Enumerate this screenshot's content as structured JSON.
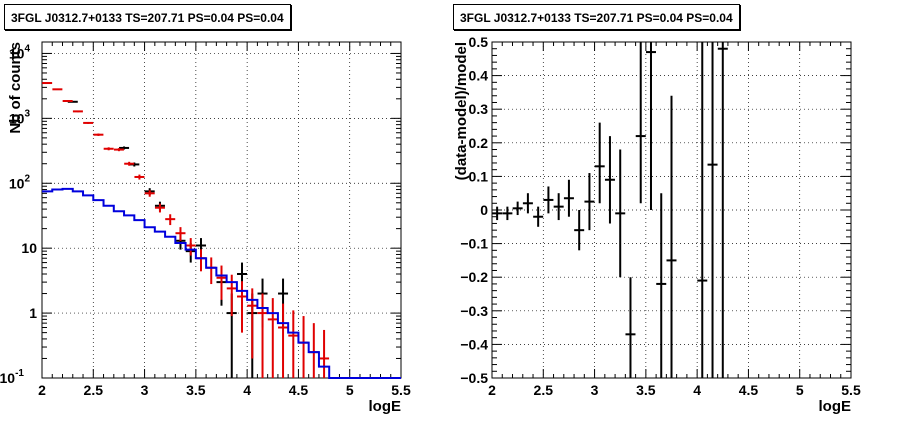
{
  "chart_data": [
    {
      "type": "line",
      "title": "3FGL J0312.7+0133 TS=207.71 PS=0.04 PS=0.04",
      "xlabel": "logE",
      "ylabel": "Nb of counts",
      "xlim": [
        2,
        5.5
      ],
      "ylim": [
        0.1,
        15000
      ],
      "yscale": "log",
      "grid": true,
      "x_ticks": [
        "2",
        "2.5",
        "3",
        "3.5",
        "4",
        "4.5",
        "5",
        "5.5"
      ],
      "y_ticks": [
        "10^-1",
        "1",
        "10",
        "10^2",
        "10^3",
        "10^4"
      ],
      "series": [
        {
          "color": "#000000",
          "style": "points-with-errorbars",
          "points": [
            {
              "x": 2.3,
              "y": 1800,
              "lo": 1760,
              "hi": 1840
            },
            {
              "x": 2.8,
              "y": 350,
              "lo": 331,
              "hi": 369
            },
            {
              "x": 2.9,
              "y": 195,
              "lo": 181,
              "hi": 209
            },
            {
              "x": 3.05,
              "y": 75,
              "lo": 66,
              "hi": 84
            },
            {
              "x": 3.15,
              "y": 45,
              "lo": 38,
              "hi": 52
            },
            {
              "x": 3.35,
              "y": 13,
              "lo": 9.5,
              "hi": 16.5
            },
            {
              "x": 3.45,
              "y": 9,
              "lo": 6,
              "hi": 12
            },
            {
              "x": 3.55,
              "y": 11,
              "lo": 7.7,
              "hi": 14.3
            },
            {
              "x": 3.75,
              "y": 3,
              "lo": 1.3,
              "hi": 4.7
            },
            {
              "x": 3.85,
              "y": 1,
              "lo": 0.1,
              "hi": 2
            },
            {
              "x": 3.95,
              "y": 4,
              "lo": 2,
              "hi": 6
            },
            {
              "x": 4.05,
              "y": 1,
              "lo": 0.1,
              "hi": 2
            },
            {
              "x": 4.15,
              "y": 2,
              "lo": 0.6,
              "hi": 3.4
            },
            {
              "x": 4.35,
              "y": 2,
              "lo": 0.6,
              "hi": 3.4
            }
          ]
        },
        {
          "color": "#e00000",
          "style": "model-with-errorbars",
          "points": [
            {
              "x": 2.05,
              "y": 3500,
              "lo": 3440,
              "hi": 3560
            },
            {
              "x": 2.15,
              "y": 2800,
              "lo": 2747,
              "hi": 2853
            },
            {
              "x": 2.25,
              "y": 1850,
              "lo": 1807,
              "hi": 1893
            },
            {
              "x": 2.35,
              "y": 1280,
              "lo": 1244,
              "hi": 1316
            },
            {
              "x": 2.45,
              "y": 850,
              "lo": 821,
              "hi": 879
            },
            {
              "x": 2.55,
              "y": 560,
              "lo": 536,
              "hi": 584
            },
            {
              "x": 2.65,
              "y": 340,
              "lo": 322,
              "hi": 358
            },
            {
              "x": 2.75,
              "y": 330,
              "lo": 312,
              "hi": 348
            },
            {
              "x": 2.85,
              "y": 200,
              "lo": 186,
              "hi": 214
            },
            {
              "x": 2.95,
              "y": 125,
              "lo": 114,
              "hi": 136
            },
            {
              "x": 3.05,
              "y": 70,
              "lo": 62,
              "hi": 78
            },
            {
              "x": 3.15,
              "y": 42,
              "lo": 35.5,
              "hi": 48.5
            },
            {
              "x": 3.25,
              "y": 28,
              "lo": 22.7,
              "hi": 33.3
            },
            {
              "x": 3.35,
              "y": 17,
              "lo": 12.9,
              "hi": 21.1
            },
            {
              "x": 3.45,
              "y": 11,
              "lo": 7.7,
              "hi": 14.3
            },
            {
              "x": 3.55,
              "y": 7,
              "lo": 4.4,
              "hi": 9.6
            },
            {
              "x": 3.65,
              "y": 5,
              "lo": 2.8,
              "hi": 7.2
            },
            {
              "x": 3.75,
              "y": 3.5,
              "lo": 1.6,
              "hi": 5.4
            },
            {
              "x": 3.85,
              "y": 2.4,
              "lo": 0.9,
              "hi": 3.9
            },
            {
              "x": 3.95,
              "y": 1.8,
              "lo": 0.5,
              "hi": 3.1
            },
            {
              "x": 4.05,
              "y": 1.3,
              "lo": 0.2,
              "hi": 2.4
            },
            {
              "x": 4.15,
              "y": 1.0,
              "lo": 0.1,
              "hi": 2.0
            },
            {
              "x": 4.25,
              "y": 0.8,
              "lo": 0.1,
              "hi": 1.7
            },
            {
              "x": 4.35,
              "y": 0.6,
              "lo": 0.1,
              "hi": 1.4
            },
            {
              "x": 4.45,
              "y": 0.45,
              "lo": 0.1,
              "hi": 1.1
            },
            {
              "x": 4.55,
              "y": 0.35,
              "lo": 0.1,
              "hi": 0.9
            },
            {
              "x": 4.65,
              "y": 0.25,
              "lo": 0.1,
              "hi": 0.7
            },
            {
              "x": 4.75,
              "y": 0.2,
              "lo": 0.1,
              "hi": 0.55
            }
          ]
        },
        {
          "color": "#0000dd",
          "style": "step",
          "points": [
            {
              "x": 2.0,
              "y": 75
            },
            {
              "x": 2.1,
              "y": 80
            },
            {
              "x": 2.2,
              "y": 82
            },
            {
              "x": 2.3,
              "y": 75
            },
            {
              "x": 2.4,
              "y": 65
            },
            {
              "x": 2.5,
              "y": 55
            },
            {
              "x": 2.6,
              "y": 45
            },
            {
              "x": 2.7,
              "y": 37
            },
            {
              "x": 2.8,
              "y": 32
            },
            {
              "x": 2.9,
              "y": 27
            },
            {
              "x": 3.0,
              "y": 21
            },
            {
              "x": 3.1,
              "y": 18
            },
            {
              "x": 3.2,
              "y": 15
            },
            {
              "x": 3.3,
              "y": 12
            },
            {
              "x": 3.4,
              "y": 9.5
            },
            {
              "x": 3.5,
              "y": 7
            },
            {
              "x": 3.6,
              "y": 5
            },
            {
              "x": 3.7,
              "y": 3.8
            },
            {
              "x": 3.8,
              "y": 3
            },
            {
              "x": 3.9,
              "y": 2.2
            },
            {
              "x": 4.0,
              "y": 1.6
            },
            {
              "x": 4.1,
              "y": 1.2
            },
            {
              "x": 4.2,
              "y": 1.0
            },
            {
              "x": 4.3,
              "y": 0.7
            },
            {
              "x": 4.4,
              "y": 0.5
            },
            {
              "x": 4.5,
              "y": 0.35
            },
            {
              "x": 4.6,
              "y": 0.25
            },
            {
              "x": 4.7,
              "y": 0.15
            },
            {
              "x": 4.8,
              "y": 0.1
            },
            {
              "x": 5.5,
              "y": 0.1
            }
          ]
        }
      ]
    },
    {
      "type": "scatter",
      "title": "3FGL J0312.7+0133 TS=207.71 PS=0.04 PS=0.04",
      "xlabel": "logE",
      "ylabel": "(data-model)/model",
      "xlim": [
        2,
        5.5
      ],
      "ylim": [
        -0.5,
        0.5
      ],
      "grid": true,
      "x_ticks": [
        "2",
        "2.5",
        "3",
        "3.5",
        "4",
        "4.5",
        "5",
        "5.5"
      ],
      "y_ticks": [
        "−0.5",
        "−0.4",
        "−0.3",
        "−0.2",
        "−0.1",
        "0",
        "0.1",
        "0.2",
        "0.3",
        "0.4",
        "0.5"
      ],
      "series": [
        {
          "color": "#000000",
          "style": "points-with-errorbars",
          "points": [
            {
              "x": 2.05,
              "y": -0.01,
              "lo": -0.03,
              "hi": 0.01
            },
            {
              "x": 2.15,
              "y": -0.01,
              "lo": -0.03,
              "hi": 0.01
            },
            {
              "x": 2.25,
              "y": 0.005,
              "lo": -0.015,
              "hi": 0.025
            },
            {
              "x": 2.35,
              "y": 0.02,
              "lo": -0.01,
              "hi": 0.05
            },
            {
              "x": 2.45,
              "y": -0.02,
              "lo": -0.05,
              "hi": 0.01
            },
            {
              "x": 2.55,
              "y": 0.03,
              "lo": -0.01,
              "hi": 0.07
            },
            {
              "x": 2.65,
              "y": 0.01,
              "lo": -0.03,
              "hi": 0.05
            },
            {
              "x": 2.75,
              "y": 0.035,
              "lo": -0.02,
              "hi": 0.09
            },
            {
              "x": 2.85,
              "y": -0.06,
              "lo": -0.12,
              "hi": 0.0
            },
            {
              "x": 2.95,
              "y": 0.025,
              "lo": -0.06,
              "hi": 0.11
            },
            {
              "x": 3.05,
              "y": 0.13,
              "lo": 0.02,
              "hi": 0.26
            },
            {
              "x": 3.15,
              "y": 0.09,
              "lo": -0.04,
              "hi": 0.22
            },
            {
              "x": 3.25,
              "y": -0.01,
              "lo": -0.2,
              "hi": 0.18
            },
            {
              "x": 3.35,
              "y": -0.37,
              "lo": -0.5,
              "hi": -0.2
            },
            {
              "x": 3.45,
              "y": 0.22,
              "lo": 0.02,
              "hi": 0.5
            },
            {
              "x": 3.55,
              "y": 0.47,
              "lo": 0.0,
              "hi": 0.5
            },
            {
              "x": 3.65,
              "y": -0.22,
              "lo": -0.5,
              "hi": 0.05
            },
            {
              "x": 3.75,
              "y": -0.15,
              "lo": -0.5,
              "hi": 0.34
            },
            {
              "x": 4.05,
              "y": -0.21,
              "lo": -0.5,
              "hi": 0.5
            },
            {
              "x": 4.15,
              "y": 0.135,
              "lo": -0.5,
              "hi": 0.5
            },
            {
              "x": 4.25,
              "y": 0.48,
              "lo": -0.5,
              "hi": 0.5
            }
          ]
        }
      ]
    }
  ]
}
